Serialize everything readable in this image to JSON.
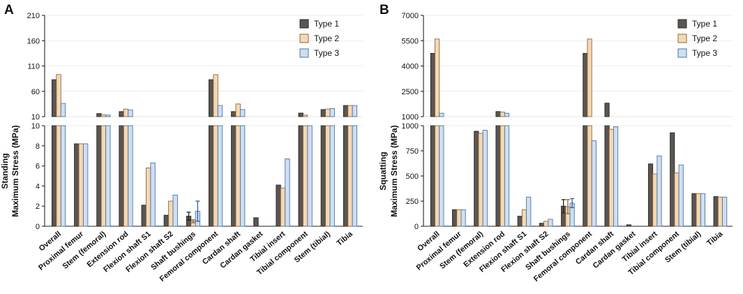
{
  "categories": [
    "Overall",
    "Proximal femur",
    "Stem (femoral)",
    "Extension rod",
    "Flexion shaft S1",
    "Flexion shaft S2",
    "Shaft bushings",
    "Femoral component",
    "Cardan shaft",
    "Cardan gasket",
    "Tibial insert",
    "Tibial component",
    "Stem (tibial)",
    "Tibia"
  ],
  "legend": [
    "Type 1",
    "Type 2",
    "Type 3"
  ],
  "colors": {
    "type1_fill": "#5b5550",
    "type1_stroke": "#2b2724",
    "type2_fill": "#f6d7b2",
    "type2_stroke": "#8a6a45",
    "type3_fill": "#cfdff1",
    "type3_stroke": "#4d74a3",
    "err1": "#222222",
    "err2": "#8a6a45",
    "err3": "#2f5f9e"
  },
  "chart_data": [
    {
      "type": "bar",
      "panel_label": "A",
      "ylabel_line1": "Standing",
      "ylabel_line2": "Maximum Stress (MPa)",
      "ylim": [
        0,
        210
      ],
      "axis_break": {
        "lower": [
          0,
          10
        ],
        "upper": [
          10,
          210
        ]
      },
      "lower_ticks": [
        "0",
        "2",
        "4",
        "6",
        "8",
        "10"
      ],
      "upper_ticks": [
        "10",
        "60",
        "110",
        "160",
        "210"
      ],
      "series": [
        {
          "name": "Type 1",
          "values": [
            83,
            8.2,
            16,
            20,
            2.1,
            1.1,
            1.0,
            83,
            20,
            0.85,
            4.1,
            17,
            24,
            32
          ],
          "errors": [
            0,
            0,
            0,
            0,
            0,
            0,
            0.4,
            0,
            0,
            0,
            0,
            0,
            0,
            0
          ]
        },
        {
          "name": "Type 2",
          "values": [
            93,
            8.2,
            14,
            25,
            5.8,
            2.5,
            0.5,
            93,
            35,
            0,
            3.8,
            13,
            25,
            32
          ],
          "errors": [
            0,
            0,
            0,
            0,
            0,
            0,
            0.15,
            0,
            0,
            0,
            0,
            0,
            0,
            0
          ]
        },
        {
          "name": "Type 3",
          "values": [
            36,
            8.2,
            13,
            23,
            6.3,
            3.1,
            1.5,
            32,
            24,
            0,
            6.7,
            10,
            26,
            32
          ],
          "errors": [
            0,
            0,
            0,
            0,
            0,
            0,
            1.0,
            0,
            0,
            0,
            0,
            0,
            0,
            0
          ]
        }
      ]
    },
    {
      "type": "bar",
      "panel_label": "B",
      "ylabel_line1": "Squatting",
      "ylabel_line2": "Maximum Stress (MPa)",
      "ylim": [
        0,
        7000
      ],
      "axis_break": {
        "lower": [
          0,
          1000
        ],
        "upper": [
          1000,
          7000
        ]
      },
      "lower_ticks": [
        "0",
        "250",
        "500",
        "750",
        "1000"
      ],
      "upper_ticks": [
        "1000",
        "2500",
        "4000",
        "5500",
        "7000"
      ],
      "series": [
        {
          "name": "Type 1",
          "values": [
            4750,
            165,
            945,
            1300,
            100,
            30,
            200,
            4750,
            1800,
            15,
            620,
            930,
            325,
            295
          ],
          "errors": [
            0,
            0,
            0,
            0,
            0,
            0,
            65,
            0,
            0,
            0,
            0,
            0,
            0,
            0
          ]
        },
        {
          "name": "Type 2",
          "values": [
            5600,
            165,
            925,
            1270,
            165,
            50,
            195,
            5600,
            965,
            0,
            520,
            530,
            325,
            290
          ],
          "errors": [
            0,
            0,
            0,
            0,
            0,
            0,
            70,
            0,
            0,
            0,
            0,
            0,
            0,
            0
          ]
        },
        {
          "name": "Type 3",
          "values": [
            1200,
            165,
            955,
            1200,
            290,
            70,
            230,
            850,
            990,
            0,
            700,
            610,
            325,
            290
          ],
          "errors": [
            0,
            0,
            0,
            0,
            0,
            0,
            45,
            0,
            0,
            0,
            0,
            0,
            0,
            0
          ]
        }
      ]
    }
  ]
}
